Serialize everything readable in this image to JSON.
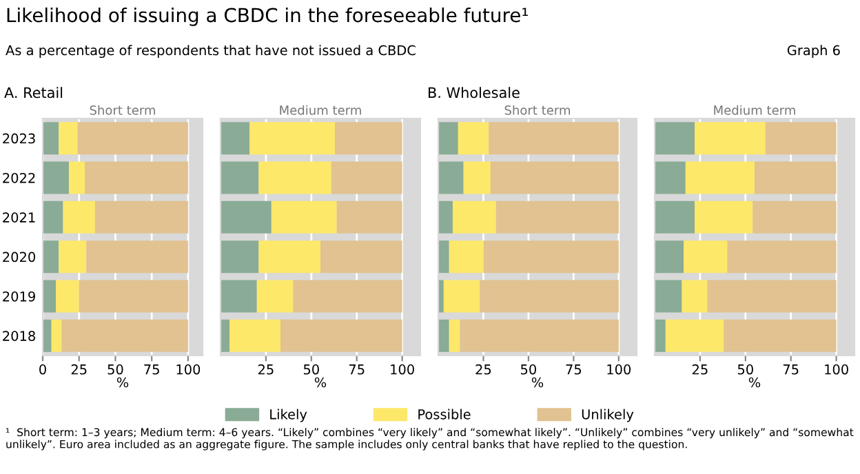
{
  "chart_data": [
    {
      "type": "bar",
      "orientation": "horizontal",
      "stacked": true,
      "title": "Short term",
      "xlabel": "%",
      "categories": [
        "2023",
        "2022",
        "2021",
        "2020",
        "2019",
        "2018"
      ],
      "series": [
        {
          "name": "Likely",
          "color": "#8aab96",
          "values": [
            11,
            18,
            14,
            11,
            9,
            6
          ]
        },
        {
          "name": "Possible",
          "color": "#fde86a",
          "values": [
            13,
            11,
            22,
            19,
            16,
            7
          ]
        },
        {
          "name": "Unlikely",
          "color": "#e1c290",
          "values": [
            76,
            71,
            64,
            70,
            75,
            87
          ]
        }
      ],
      "xlim": [
        0,
        110
      ],
      "xticks": [
        0,
        25,
        50,
        75,
        100
      ],
      "grid": "x",
      "legend": "bottom",
      "annotations": [
        "A. Retail",
        "Likelihood of issuing a CBDC in the foreseeable future¹",
        "As a percentage of respondents that have not issued a CBDC",
        "Graph 6",
        "¹  Short term: 1–3 years; Medium term: 4–6 years. “Likely” combines “very likely” and “somewhat likely”. “Unlikely” combines “very unlikely” and “somewhat unlikely”. Euro area included as an aggregate figure. The sample includes only central banks that have replied to the question."
      ]
    },
    {
      "type": "bar",
      "orientation": "horizontal",
      "stacked": true,
      "title": "Medium term",
      "xlabel": "%",
      "categories": [
        "2023",
        "2022",
        "2021",
        "2020",
        "2019",
        "2018"
      ],
      "series": [
        {
          "color": "#8aab96",
          "values": [
            16,
            21,
            28,
            21,
            20,
            5
          ]
        },
        {
          "color": "#fde86a",
          "values": [
            47,
            40,
            36,
            34,
            20,
            28
          ]
        },
        {
          "color": "#e1c290",
          "values": [
            37,
            39,
            36,
            45,
            60,
            67
          ]
        }
      ],
      "xlim": [
        0,
        110
      ],
      "xticks": [
        25,
        50,
        75,
        100
      ],
      "grid": "x",
      "tick_labels": "x"
    },
    {
      "type": "bar",
      "orientation": "horizontal",
      "stacked": true,
      "title": "Short term",
      "xlabel": "%",
      "categories": [
        "2023",
        "2022",
        "2021",
        "2020",
        "2019",
        "2018"
      ],
      "series": [
        {
          "color": "#8aab96",
          "values": [
            11,
            14,
            8,
            6,
            3,
            6
          ]
        },
        {
          "color": "#fde86a",
          "values": [
            17,
            15,
            24,
            19,
            20,
            6
          ]
        },
        {
          "color": "#e1c290",
          "values": [
            72,
            71,
            68,
            75,
            77,
            88
          ]
        }
      ],
      "xlim": [
        0,
        110
      ],
      "xticks": [
        25,
        50,
        75,
        100
      ],
      "grid": "x",
      "tick_labels": "x",
      "annotations": [
        "B. Wholesale"
      ]
    },
    {
      "type": "bar",
      "orientation": "horizontal",
      "stacked": true,
      "title": "Medium term",
      "xlabel": "%",
      "categories": [
        "2023",
        "2022",
        "2021",
        "2020",
        "2019",
        "2018"
      ],
      "series": [
        {
          "color": "#8aab96",
          "values": [
            22,
            17,
            22,
            16,
            15,
            6
          ]
        },
        {
          "color": "#fde86a",
          "values": [
            39,
            38,
            32,
            24,
            14,
            32
          ]
        },
        {
          "color": "#e1c290",
          "values": [
            39,
            45,
            46,
            60,
            71,
            62
          ]
        }
      ],
      "xlim": [
        0,
        110
      ],
      "xticks": [
        25,
        50,
        75,
        100
      ],
      "grid": "x",
      "tick_labels": "x"
    }
  ]
}
